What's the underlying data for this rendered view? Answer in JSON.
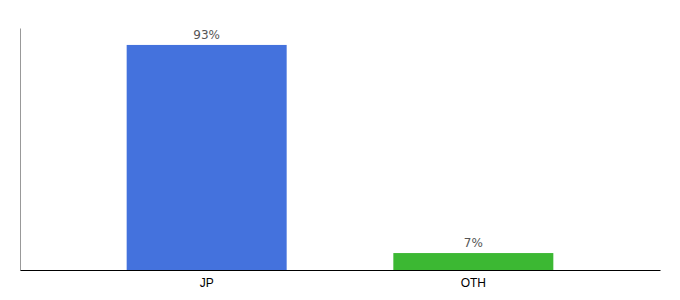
{
  "chart_data": {
    "type": "bar",
    "categories": [
      "JP",
      "OTH"
    ],
    "values": [
      93,
      7
    ],
    "value_labels": [
      "93%",
      "7%"
    ],
    "data_labels": true,
    "colors": [
      "#4472DD",
      "#3CB833"
    ],
    "ylim": [
      0,
      100
    ],
    "tick_labels": "x"
  }
}
